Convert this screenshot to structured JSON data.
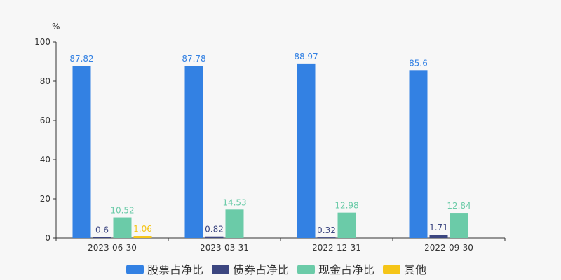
{
  "chart_data": {
    "type": "bar",
    "unit_label": "%",
    "categories": [
      "2023-06-30",
      "2023-03-31",
      "2022-12-31",
      "2022-09-30"
    ],
    "series": [
      {
        "name": "股票占净比",
        "color": "#3381e3",
        "values": [
          87.82,
          87.78,
          88.97,
          85.6
        ]
      },
      {
        "name": "债券占净比",
        "color": "#3c4680",
        "values": [
          0.6,
          0.82,
          0.32,
          1.71
        ]
      },
      {
        "name": "现金占净比",
        "color": "#6bcba8",
        "values": [
          10.52,
          14.53,
          12.98,
          12.84
        ]
      },
      {
        "name": "其他",
        "color": "#f5c518",
        "values": [
          1.06,
          null,
          null,
          null
        ]
      }
    ],
    "ylim": [
      0,
      100
    ],
    "yticks": [
      0,
      20,
      40,
      60,
      80,
      100
    ],
    "grid": false,
    "legend_position": "bottom"
  }
}
